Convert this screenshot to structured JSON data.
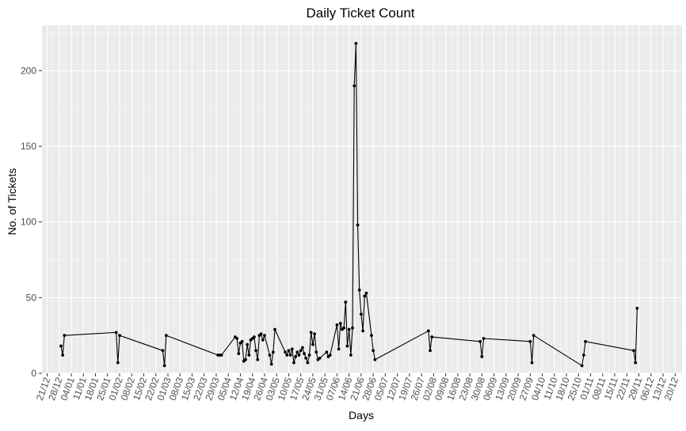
{
  "chart_data": {
    "type": "line",
    "title": "Daily Ticket Count",
    "xlabel": "Days",
    "ylabel": "No. of Tickets",
    "ylim": [
      0,
      230
    ],
    "xlim": [
      "2018-12-18",
      "2019-12-24"
    ],
    "grid": true,
    "legend": "none",
    "colors": {
      "panel": "#ebebeb",
      "grid": "#ffffff",
      "line": "#000000",
      "point": "#000000",
      "tick_text": "#4d4d4d"
    },
    "y_ticks": [
      0,
      50,
      100,
      150,
      200
    ],
    "x_ticks": [
      {
        "date": "2018-12-21",
        "label": "21/12"
      },
      {
        "date": "2018-12-28",
        "label": "28/12"
      },
      {
        "date": "2019-01-04",
        "label": "04/01"
      },
      {
        "date": "2019-01-11",
        "label": "11/01"
      },
      {
        "date": "2019-01-18",
        "label": "18/01"
      },
      {
        "date": "2019-01-25",
        "label": "25/01"
      },
      {
        "date": "2019-02-01",
        "label": "01/02"
      },
      {
        "date": "2019-02-08",
        "label": "08/02"
      },
      {
        "date": "2019-02-15",
        "label": "15/02"
      },
      {
        "date": "2019-02-22",
        "label": "22/02"
      },
      {
        "date": "2019-03-01",
        "label": "01/03"
      },
      {
        "date": "2019-03-08",
        "label": "08/03"
      },
      {
        "date": "2019-03-15",
        "label": "15/03"
      },
      {
        "date": "2019-03-22",
        "label": "22/03"
      },
      {
        "date": "2019-03-29",
        "label": "29/03"
      },
      {
        "date": "2019-04-05",
        "label": "05/04"
      },
      {
        "date": "2019-04-12",
        "label": "12/04"
      },
      {
        "date": "2019-04-19",
        "label": "19/04"
      },
      {
        "date": "2019-04-26",
        "label": "26/04"
      },
      {
        "date": "2019-05-03",
        "label": "03/05"
      },
      {
        "date": "2019-05-10",
        "label": "10/05"
      },
      {
        "date": "2019-05-17",
        "label": "17/05"
      },
      {
        "date": "2019-05-24",
        "label": "24/05"
      },
      {
        "date": "2019-05-31",
        "label": "31/05"
      },
      {
        "date": "2019-06-07",
        "label": "07/06"
      },
      {
        "date": "2019-06-14",
        "label": "14/06"
      },
      {
        "date": "2019-06-21",
        "label": "21/06"
      },
      {
        "date": "2019-06-28",
        "label": "28/06"
      },
      {
        "date": "2019-07-05",
        "label": "05/07"
      },
      {
        "date": "2019-07-12",
        "label": "12/07"
      },
      {
        "date": "2019-07-19",
        "label": "19/07"
      },
      {
        "date": "2019-07-26",
        "label": "26/07"
      },
      {
        "date": "2019-08-02",
        "label": "02/08"
      },
      {
        "date": "2019-08-09",
        "label": "09/08"
      },
      {
        "date": "2019-08-16",
        "label": "16/08"
      },
      {
        "date": "2019-08-23",
        "label": "23/08"
      },
      {
        "date": "2019-08-30",
        "label": "30/08"
      },
      {
        "date": "2019-09-06",
        "label": "06/09"
      },
      {
        "date": "2019-09-13",
        "label": "13/09"
      },
      {
        "date": "2019-09-20",
        "label": "20/09"
      },
      {
        "date": "2019-09-27",
        "label": "27/09"
      },
      {
        "date": "2019-10-04",
        "label": "04/10"
      },
      {
        "date": "2019-10-11",
        "label": "11/10"
      },
      {
        "date": "2019-10-18",
        "label": "18/10"
      },
      {
        "date": "2019-10-25",
        "label": "25/10"
      },
      {
        "date": "2019-11-01",
        "label": "01/11"
      },
      {
        "date": "2019-11-08",
        "label": "08/11"
      },
      {
        "date": "2019-11-15",
        "label": "15/11"
      },
      {
        "date": "2019-11-22",
        "label": "22/11"
      },
      {
        "date": "2019-11-29",
        "label": "29/11"
      },
      {
        "date": "2019-12-06",
        "label": "06/12"
      },
      {
        "date": "2019-12-13",
        "label": "13/12"
      },
      {
        "date": "2019-12-20",
        "label": "20/12"
      }
    ],
    "points": [
      {
        "x": "2018-12-29",
        "y": 18
      },
      {
        "x": "2018-12-30",
        "y": 12
      },
      {
        "x": "2018-12-31",
        "y": 25
      },
      {
        "x": "2019-01-30",
        "y": 27
      },
      {
        "x": "2019-01-31",
        "y": 7
      },
      {
        "x": "2019-02-01",
        "y": 25
      },
      {
        "x": "2019-02-26",
        "y": 15
      },
      {
        "x": "2019-02-27",
        "y": 5
      },
      {
        "x": "2019-02-28",
        "y": 25
      },
      {
        "x": "2019-03-30",
        "y": 12
      },
      {
        "x": "2019-03-31",
        "y": 12
      },
      {
        "x": "2019-04-01",
        "y": 12
      },
      {
        "x": "2019-04-09",
        "y": 24
      },
      {
        "x": "2019-04-10",
        "y": 23
      },
      {
        "x": "2019-04-11",
        "y": 13
      },
      {
        "x": "2019-04-12",
        "y": 20
      },
      {
        "x": "2019-04-13",
        "y": 21
      },
      {
        "x": "2019-04-14",
        "y": 8
      },
      {
        "x": "2019-04-15",
        "y": 9
      },
      {
        "x": "2019-04-16",
        "y": 19
      },
      {
        "x": "2019-04-17",
        "y": 12
      },
      {
        "x": "2019-04-18",
        "y": 22
      },
      {
        "x": "2019-04-19",
        "y": 23
      },
      {
        "x": "2019-04-20",
        "y": 24
      },
      {
        "x": "2019-04-21",
        "y": 15
      },
      {
        "x": "2019-04-22",
        "y": 9
      },
      {
        "x": "2019-04-23",
        "y": 25
      },
      {
        "x": "2019-04-24",
        "y": 26
      },
      {
        "x": "2019-04-25",
        "y": 22
      },
      {
        "x": "2019-04-26",
        "y": 25
      },
      {
        "x": "2019-04-29",
        "y": 12
      },
      {
        "x": "2019-04-30",
        "y": 6
      },
      {
        "x": "2019-05-01",
        "y": 14
      },
      {
        "x": "2019-05-02",
        "y": 29
      },
      {
        "x": "2019-05-08",
        "y": 14
      },
      {
        "x": "2019-05-09",
        "y": 12
      },
      {
        "x": "2019-05-10",
        "y": 15
      },
      {
        "x": "2019-05-11",
        "y": 12
      },
      {
        "x": "2019-05-12",
        "y": 16
      },
      {
        "x": "2019-05-13",
        "y": 7
      },
      {
        "x": "2019-05-14",
        "y": 11
      },
      {
        "x": "2019-05-15",
        "y": 14
      },
      {
        "x": "2019-05-16",
        "y": 12
      },
      {
        "x": "2019-05-17",
        "y": 15
      },
      {
        "x": "2019-05-18",
        "y": 17
      },
      {
        "x": "2019-05-19",
        "y": 13
      },
      {
        "x": "2019-05-20",
        "y": 10
      },
      {
        "x": "2019-05-21",
        "y": 7
      },
      {
        "x": "2019-05-22",
        "y": 12
      },
      {
        "x": "2019-05-23",
        "y": 27
      },
      {
        "x": "2019-05-24",
        "y": 19
      },
      {
        "x": "2019-05-25",
        "y": 26
      },
      {
        "x": "2019-05-26",
        "y": 14
      },
      {
        "x": "2019-05-27",
        "y": 9
      },
      {
        "x": "2019-05-28",
        "y": 10
      },
      {
        "x": "2019-06-01",
        "y": 14
      },
      {
        "x": "2019-06-02",
        "y": 11
      },
      {
        "x": "2019-06-03",
        "y": 12
      },
      {
        "x": "2019-06-07",
        "y": 32
      },
      {
        "x": "2019-06-08",
        "y": 16
      },
      {
        "x": "2019-06-09",
        "y": 33
      },
      {
        "x": "2019-06-10",
        "y": 29
      },
      {
        "x": "2019-06-11",
        "y": 30
      },
      {
        "x": "2019-06-12",
        "y": 47
      },
      {
        "x": "2019-06-13",
        "y": 18
      },
      {
        "x": "2019-06-14",
        "y": 29
      },
      {
        "x": "2019-06-15",
        "y": 12
      },
      {
        "x": "2019-06-16",
        "y": 30
      },
      {
        "x": "2019-06-17",
        "y": 190
      },
      {
        "x": "2019-06-18",
        "y": 218
      },
      {
        "x": "2019-06-19",
        "y": 98
      },
      {
        "x": "2019-06-20",
        "y": 55
      },
      {
        "x": "2019-06-21",
        "y": 39
      },
      {
        "x": "2019-06-22",
        "y": 28
      },
      {
        "x": "2019-06-23",
        "y": 51
      },
      {
        "x": "2019-06-24",
        "y": 53
      },
      {
        "x": "2019-06-27",
        "y": 25
      },
      {
        "x": "2019-06-28",
        "y": 15
      },
      {
        "x": "2019-06-29",
        "y": 9
      },
      {
        "x": "2019-07-30",
        "y": 28
      },
      {
        "x": "2019-07-31",
        "y": 15
      },
      {
        "x": "2019-08-01",
        "y": 24
      },
      {
        "x": "2019-08-29",
        "y": 21
      },
      {
        "x": "2019-08-30",
        "y": 11
      },
      {
        "x": "2019-08-31",
        "y": 23
      },
      {
        "x": "2019-09-27",
        "y": 21
      },
      {
        "x": "2019-09-28",
        "y": 7
      },
      {
        "x": "2019-09-29",
        "y": 25
      },
      {
        "x": "2019-10-27",
        "y": 5
      },
      {
        "x": "2019-10-28",
        "y": 12
      },
      {
        "x": "2019-10-29",
        "y": 21
      },
      {
        "x": "2019-11-26",
        "y": 15
      },
      {
        "x": "2019-11-27",
        "y": 7
      },
      {
        "x": "2019-11-28",
        "y": 43
      }
    ]
  }
}
